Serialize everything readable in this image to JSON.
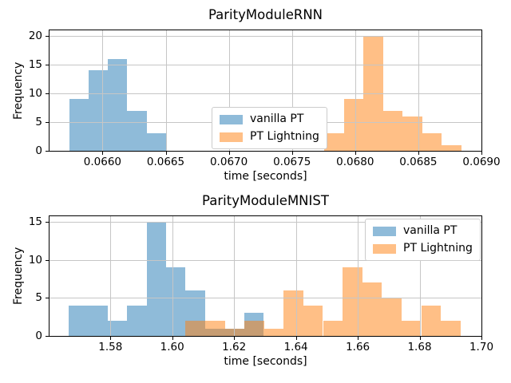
{
  "figure": {
    "background": "#ffffff",
    "grid_color": "#c6c6c6",
    "spine_color": "#000000",
    "blue_fill": "rgba(31,119,180,0.5)",
    "orange_fill": "rgba(255,127,14,0.5)"
  },
  "legend": {
    "items": [
      {
        "label": "vanilla PT",
        "fill": "rgba(31,119,180,0.5)"
      },
      {
        "label": "PT Lightning",
        "fill": "rgba(255,127,14,0.5)"
      }
    ]
  },
  "chart_data": [
    {
      "type": "histogram",
      "title": "ParityModuleRNN",
      "xlabel": "time [seconds]",
      "ylabel": "Frequency",
      "xlim": [
        0.06558,
        0.069
      ],
      "ylim": [
        0,
        21
      ],
      "xtick_values": [
        0.066,
        0.0665,
        0.067,
        0.0675,
        0.068,
        0.0685,
        0.069
      ],
      "xtick_labels": [
        "0.0660",
        "0.0665",
        "0.0670",
        "0.0675",
        "0.0680",
        "0.0685",
        "0.0690"
      ],
      "ytick_values": [
        0,
        5,
        10,
        15,
        20
      ],
      "ytick_labels": [
        "0",
        "5",
        "10",
        "15",
        "20"
      ],
      "grid": true,
      "legend_position": "center",
      "series": [
        {
          "name": "vanilla PT",
          "fill": "rgba(31,119,180,0.5)",
          "bin_start": 0.065737,
          "bin_width": 0.000153,
          "counts": [
            9,
            14,
            16,
            7,
            3
          ]
        },
        {
          "name": "PT Lightning",
          "fill": "rgba(255,127,14,0.5)",
          "bin_start": 0.067755,
          "bin_width": 0.000155,
          "counts": [
            3,
            9,
            20,
            7,
            6,
            3,
            1
          ]
        }
      ]
    },
    {
      "type": "histogram",
      "title": "ParityModuleMNIST",
      "xlabel": "time [seconds]",
      "ylabel": "Frequency",
      "xlim": [
        1.5603,
        1.7
      ],
      "ylim": [
        0,
        15.75
      ],
      "xtick_values": [
        1.58,
        1.6,
        1.62,
        1.64,
        1.66,
        1.68,
        1.7
      ],
      "xtick_labels": [
        "1.58",
        "1.60",
        "1.62",
        "1.64",
        "1.66",
        "1.68",
        "1.70"
      ],
      "ytick_values": [
        0,
        5,
        10,
        15
      ],
      "ytick_labels": [
        "0",
        "5",
        "10",
        "15"
      ],
      "grid": true,
      "legend_position": "upper right",
      "series": [
        {
          "name": "vanilla PT",
          "fill": "rgba(31,119,180,0.5)",
          "bin_start": 1.5665,
          "bin_width": 0.0063,
          "counts": [
            4,
            4,
            2,
            4,
            15,
            9,
            6,
            1,
            1,
            3
          ]
        },
        {
          "name": "PT Lightning",
          "fill": "rgba(255,127,14,0.5)",
          "bin_start": 1.6043,
          "bin_width": 0.00635,
          "counts": [
            2,
            2,
            1,
            2,
            1,
            6,
            4,
            2,
            9,
            7,
            5,
            2,
            4,
            2
          ]
        }
      ]
    }
  ]
}
